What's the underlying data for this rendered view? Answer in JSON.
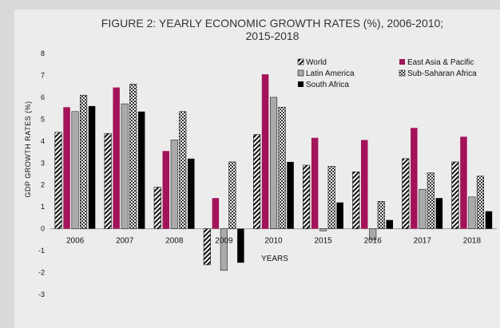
{
  "chart_data": {
    "type": "bar",
    "title_line1": "FIGURE 2: YEARLY ECONOMIC GROWTH RATES (%), 2006-2010;",
    "title_line2": "2015-2018",
    "xlabel": "YEARS",
    "ylabel": "GDP GROWTH RATES (%)",
    "ylim": [
      -3,
      8
    ],
    "yticks": [
      "8",
      "7",
      "6",
      "5",
      "4",
      "3",
      "2",
      "1",
      "0",
      "-1",
      "-2",
      "-3"
    ],
    "categories": [
      "2006",
      "2007",
      "2008",
      "2009",
      "2010",
      "2015",
      "2016",
      "2017",
      "2018"
    ],
    "legend_position": "top-right",
    "series": [
      {
        "name": "World",
        "color": "#111111",
        "pattern": "diagonal-stripes",
        "values": [
          4.4,
          4.35,
          1.9,
          -1.65,
          4.3,
          2.9,
          2.6,
          3.2,
          3.05
        ]
      },
      {
        "name": "East Asia & Pacific",
        "color": "#a3135a",
        "pattern": "solid",
        "values": [
          5.55,
          6.45,
          3.55,
          1.4,
          7.05,
          4.15,
          4.05,
          4.6,
          4.2
        ]
      },
      {
        "name": "Latin America",
        "color": "#aaaaaa",
        "pattern": "solid-outlined",
        "values": [
          5.35,
          5.7,
          4.05,
          -1.9,
          6.0,
          -0.1,
          -0.5,
          1.8,
          1.45
        ]
      },
      {
        "name": "Sub-Saharan Africa",
        "color": "#111111",
        "pattern": "checkered",
        "values": [
          6.1,
          6.6,
          5.35,
          3.05,
          5.55,
          2.85,
          1.25,
          2.55,
          2.4
        ]
      },
      {
        "name": "South Africa",
        "color": "#000000",
        "pattern": "solid",
        "values": [
          5.6,
          5.35,
          3.2,
          -1.55,
          3.05,
          1.2,
          0.4,
          1.4,
          0.8
        ]
      }
    ]
  }
}
